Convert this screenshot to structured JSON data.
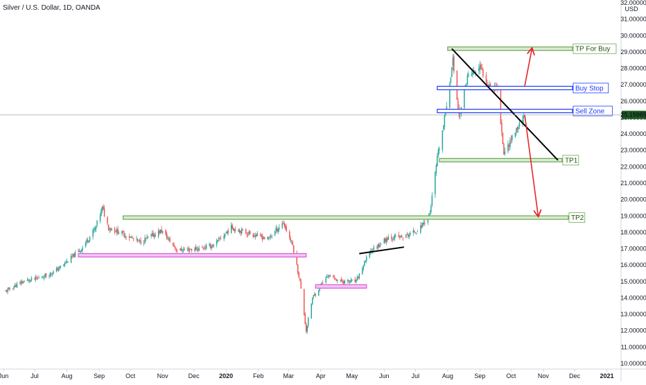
{
  "header": {
    "title": "Silver / U.S. Dollar, 1D, OANDA"
  },
  "colors": {
    "bull": "#26a69a",
    "bear": "#ef5350",
    "green_zone": "#6aa84f",
    "green_fill": "#d9ead3",
    "blue_zone": "#1c39ff",
    "pink_zone": "#d65bd6",
    "pink_fill": "#f4c5f4",
    "price_badge": "#1b5e20",
    "arrow": "#e5252a",
    "trend": "#000000"
  },
  "chart_data": {
    "type": "candlestick",
    "title": "Silver / U.S. Dollar, 1D, OANDA",
    "currency": "USD",
    "last_price_label": "25.15985",
    "last_price": 25.16,
    "y_axis": {
      "ylim": [
        10,
        32
      ],
      "ticks": [
        "10.00000",
        "11.00000",
        "12.00000",
        "13.00000",
        "14.00000",
        "15.00000",
        "16.00000",
        "17.00000",
        "18.00000",
        "19.00000",
        "20.00000",
        "21.00000",
        "22.00000",
        "23.00000",
        "24.00000",
        "25.00000",
        "26.00000",
        "27.00000",
        "28.00000",
        "29.00000",
        "30.00000",
        "31.00000",
        "32.00000"
      ]
    },
    "x_axis": {
      "start": "2019-06-01",
      "end": "2021-01-10",
      "ticks": [
        {
          "label": "Jun",
          "date": "2019-06-01"
        },
        {
          "label": "Jul",
          "date": "2019-07-01"
        },
        {
          "label": "Aug",
          "date": "2019-08-01"
        },
        {
          "label": "Sep",
          "date": "2019-09-01"
        },
        {
          "label": "Oct",
          "date": "2019-10-01"
        },
        {
          "label": "Nov",
          "date": "2019-11-01"
        },
        {
          "label": "Dec",
          "date": "2019-12-01"
        },
        {
          "label": "2020",
          "date": "2020-01-01"
        },
        {
          "label": "Feb",
          "date": "2020-02-01"
        },
        {
          "label": "Mar",
          "date": "2020-03-01"
        },
        {
          "label": "Apr",
          "date": "2020-04-01"
        },
        {
          "label": "May",
          "date": "2020-05-01"
        },
        {
          "label": "Jun",
          "date": "2020-06-01"
        },
        {
          "label": "Jul",
          "date": "2020-07-01"
        },
        {
          "label": "Aug",
          "date": "2020-08-01"
        },
        {
          "label": "Sep",
          "date": "2020-09-01"
        },
        {
          "label": "Oct",
          "date": "2020-10-01"
        },
        {
          "label": "Nov",
          "date": "2020-11-01"
        },
        {
          "label": "Dec",
          "date": "2020-12-01"
        },
        {
          "label": "2021",
          "date": "2021-01-01"
        }
      ]
    },
    "price_path": [
      [
        "2019-06-03",
        14.4
      ],
      [
        "2019-06-20",
        15.0
      ],
      [
        "2019-07-05",
        15.2
      ],
      [
        "2019-07-20",
        15.6
      ],
      [
        "2019-08-01",
        16.2
      ],
      [
        "2019-08-15",
        17.0
      ],
      [
        "2019-08-28",
        18.2
      ],
      [
        "2019-09-04",
        19.5
      ],
      [
        "2019-09-10",
        18.3
      ],
      [
        "2019-09-24",
        17.9
      ],
      [
        "2019-10-10",
        17.4
      ],
      [
        "2019-10-31",
        18.1
      ],
      [
        "2019-11-15",
        16.9
      ],
      [
        "2019-12-05",
        17.0
      ],
      [
        "2019-12-20",
        17.2
      ],
      [
        "2020-01-06",
        18.3
      ],
      [
        "2020-01-20",
        18.0
      ],
      [
        "2020-02-10",
        17.6
      ],
      [
        "2020-02-25",
        18.6
      ],
      [
        "2020-03-05",
        17.2
      ],
      [
        "2020-03-12",
        15.0
      ],
      [
        "2020-03-18",
        12.0
      ],
      [
        "2020-03-24",
        14.0
      ],
      [
        "2020-04-08",
        15.4
      ],
      [
        "2020-04-20",
        15.0
      ],
      [
        "2020-05-05",
        15.0
      ],
      [
        "2020-05-18",
        16.8
      ],
      [
        "2020-06-05",
        17.7
      ],
      [
        "2020-06-20",
        17.7
      ],
      [
        "2020-07-05",
        18.2
      ],
      [
        "2020-07-15",
        19.2
      ],
      [
        "2020-07-22",
        22.5
      ],
      [
        "2020-07-28",
        24.5
      ],
      [
        "2020-08-06",
        28.5
      ],
      [
        "2020-08-12",
        25.0
      ],
      [
        "2020-08-20",
        27.5
      ],
      [
        "2020-09-01",
        28.0
      ],
      [
        "2020-09-10",
        27.0
      ],
      [
        "2020-09-18",
        26.8
      ],
      [
        "2020-09-24",
        22.8
      ],
      [
        "2020-10-02",
        23.8
      ],
      [
        "2020-10-09",
        24.6
      ],
      [
        "2020-10-13",
        25.2
      ]
    ],
    "annotations": [
      {
        "type": "zone",
        "label": "TP For Buy",
        "price": 29.2,
        "from": "2020-08-01",
        "to": "2020-11-29",
        "style": "green"
      },
      {
        "type": "zone",
        "label": "Buy Stop",
        "price": 26.8,
        "from": "2020-07-22",
        "to": "2020-11-29",
        "style": "blue"
      },
      {
        "type": "zone",
        "label": "Sell Zone",
        "price": 25.4,
        "from": "2020-07-22",
        "to": "2020-11-29",
        "style": "blue"
      },
      {
        "type": "zone",
        "label": "TP1",
        "price": 22.4,
        "from": "2020-07-24",
        "to": "2020-11-19",
        "style": "green"
      },
      {
        "type": "zone",
        "label": "TP2",
        "price": 18.9,
        "from": "2019-09-24",
        "to": "2020-11-25",
        "style": "green"
      },
      {
        "type": "zone",
        "label": "",
        "price": 16.6,
        "from": "2019-08-12",
        "to": "2020-03-18",
        "style": "pink"
      },
      {
        "type": "zone",
        "label": "",
        "price": 14.7,
        "from": "2020-03-27",
        "to": "2020-05-15",
        "style": "pink"
      },
      {
        "type": "trendline",
        "from": [
          "2020-08-05",
          29.2
        ],
        "to": [
          "2020-11-15",
          22.4
        ]
      },
      {
        "type": "trendline",
        "from": [
          "2020-05-08",
          16.7
        ],
        "to": [
          "2020-06-20",
          17.1
        ]
      },
      {
        "type": "arrow",
        "from": [
          "2020-10-14",
          26.9
        ],
        "to": [
          "2020-10-21",
          29.2
        ]
      },
      {
        "type": "arrow",
        "from": [
          "2020-10-14",
          25.2
        ],
        "to": [
          "2020-10-27",
          19.0
        ]
      }
    ]
  }
}
